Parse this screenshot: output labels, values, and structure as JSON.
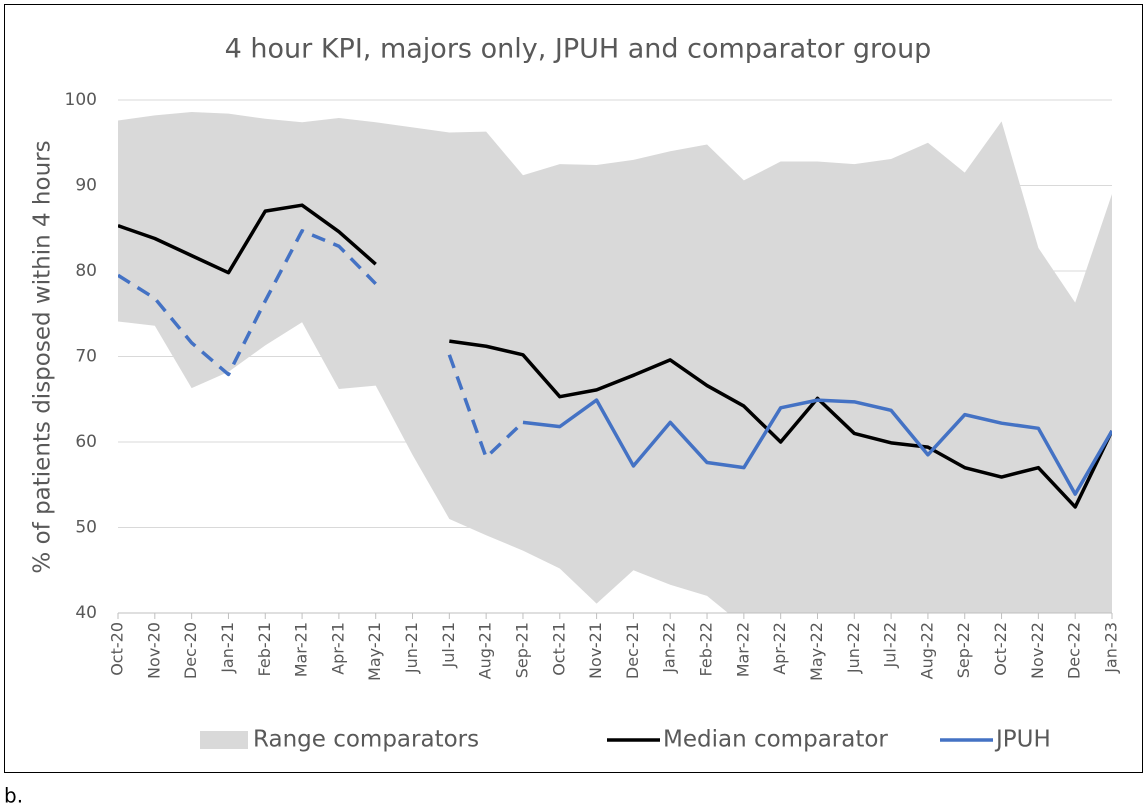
{
  "figure_label": "b.",
  "chart_data": {
    "type": "line",
    "title": "4 hour KPI, majors only, JPUH and comparator group",
    "y_label": "% of patients disposed within 4 hours",
    "categories": [
      "Oct-20",
      "Nov-20",
      "Dec-20",
      "Jan-21",
      "Feb-21",
      "Mar-21",
      "Apr-21",
      "May-21",
      "Jun-21",
      "Jul-21",
      "Aug-21",
      "Sep-21",
      "Oct-21",
      "Nov-21",
      "Dec-21",
      "Jan-22",
      "Feb-22",
      "Mar-22",
      "Apr-22",
      "May-22",
      "Jun-22",
      "Jul-22",
      "Aug-22",
      "Sep-22",
      "Oct-22",
      "Nov-22",
      "Dec-22",
      "Jan-23"
    ],
    "ylim": [
      40,
      100
    ],
    "yticks": [
      40,
      50,
      60,
      70,
      80,
      90,
      100
    ],
    "grid": true,
    "series": [
      {
        "name": "Range comparators",
        "color": "#d9d9d9",
        "kind": "range",
        "upper": [
          97.6,
          98.2,
          98.6,
          98.4,
          97.8,
          97.4,
          97.9,
          97.4,
          96.8,
          96.2,
          96.3,
          91.2,
          92.5,
          92.4,
          93.0,
          94.0,
          94.8,
          90.6,
          92.8,
          92.8,
          92.5,
          93.1,
          95.0,
          91.5,
          97.5,
          82.7,
          76.3,
          89.0
        ],
        "lower": [
          74.1,
          73.6,
          66.3,
          68.2,
          71.3,
          74.0,
          66.2,
          66.6,
          58.5,
          51.0,
          49.1,
          47.3,
          45.2,
          41.1,
          45.0,
          43.3,
          42.0,
          38.5,
          37.5,
          37.0,
          36.5,
          37.0,
          37.5,
          37.0,
          36.5,
          36.0,
          37.0,
          38.0
        ]
      },
      {
        "name": "Median comparator",
        "color": "#000000",
        "kind": "line",
        "values": [
          85.3,
          83.8,
          81.8,
          79.8,
          87.0,
          87.7,
          84.6,
          80.8,
          null,
          71.8,
          71.2,
          70.2,
          65.3,
          66.1,
          67.8,
          69.6,
          66.6,
          64.2,
          60.0,
          65.1,
          61.0,
          59.9,
          59.4,
          57.0,
          55.9,
          57.0,
          52.4,
          61.3
        ],
        "dashed": [
          false,
          false,
          false,
          false,
          false,
          false,
          false,
          false,
          false,
          false,
          false,
          false,
          false,
          false,
          false,
          false,
          false,
          false,
          false,
          false,
          false,
          false,
          false,
          false,
          false,
          false,
          false,
          false
        ]
      },
      {
        "name": "JPUH",
        "color": "#4472c4",
        "kind": "line",
        "values": [
          79.5,
          76.8,
          71.6,
          67.9,
          76.5,
          84.7,
          82.9,
          78.5,
          null,
          70.2,
          58.2,
          62.3,
          61.8,
          64.9,
          57.2,
          62.3,
          57.6,
          57.0,
          64.0,
          64.9,
          64.7,
          63.7,
          58.5,
          63.2,
          62.2,
          61.6,
          53.9,
          61.3
        ],
        "dashed": [
          true,
          true,
          true,
          true,
          true,
          true,
          true,
          true,
          false,
          true,
          true,
          false,
          false,
          false,
          false,
          false,
          false,
          false,
          false,
          false,
          false,
          false,
          false,
          false,
          false,
          false,
          false,
          false
        ]
      }
    ]
  }
}
